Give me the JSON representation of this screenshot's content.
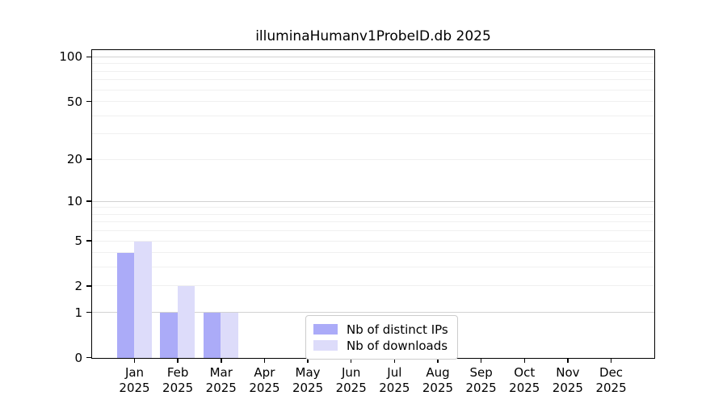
{
  "title": "illuminaHumanv1ProbeID.db 2025",
  "chart_data": {
    "type": "bar",
    "title": "illuminaHumanv1ProbeID.db 2025",
    "categories": [
      "Jan",
      "Feb",
      "Mar",
      "Apr",
      "May",
      "Jun",
      "Jul",
      "Aug",
      "Sep",
      "Oct",
      "Nov",
      "Dec"
    ],
    "x_tick_year_line": "2025",
    "series": [
      {
        "name": "Nb of distinct IPs",
        "color": "#ababf8",
        "values": [
          4,
          1,
          1,
          0,
          0,
          0,
          0,
          0,
          0,
          0,
          0,
          0
        ]
      },
      {
        "name": "Nb of downloads",
        "color": "#dddcfa",
        "values": [
          5,
          2,
          1,
          0,
          0,
          0,
          0,
          0,
          0,
          0,
          0,
          0
        ]
      }
    ],
    "xlabel": "",
    "ylabel": "",
    "y_ticks": [
      0,
      1,
      2,
      5,
      10,
      20,
      50,
      100
    ],
    "y_scale": "log10(value+1)",
    "ylim": [
      0,
      110.5
    ],
    "grid": true,
    "grid_minor_values": [
      2,
      3,
      4,
      5,
      6,
      7,
      8,
      9,
      20,
      30,
      40,
      50,
      60,
      70,
      80,
      90
    ],
    "grid_major_values": [
      1,
      10,
      100
    ],
    "legend_position": "inside-bottom-center",
    "colors": {
      "bar_distinct_ips": "#ababf8",
      "bar_downloads": "#dddcfa",
      "grid_minor": "#f0f0f0",
      "grid_major": "#d2d2d2",
      "axis": "#000000",
      "text": "#000000",
      "legend_border": "#cccccc"
    }
  }
}
